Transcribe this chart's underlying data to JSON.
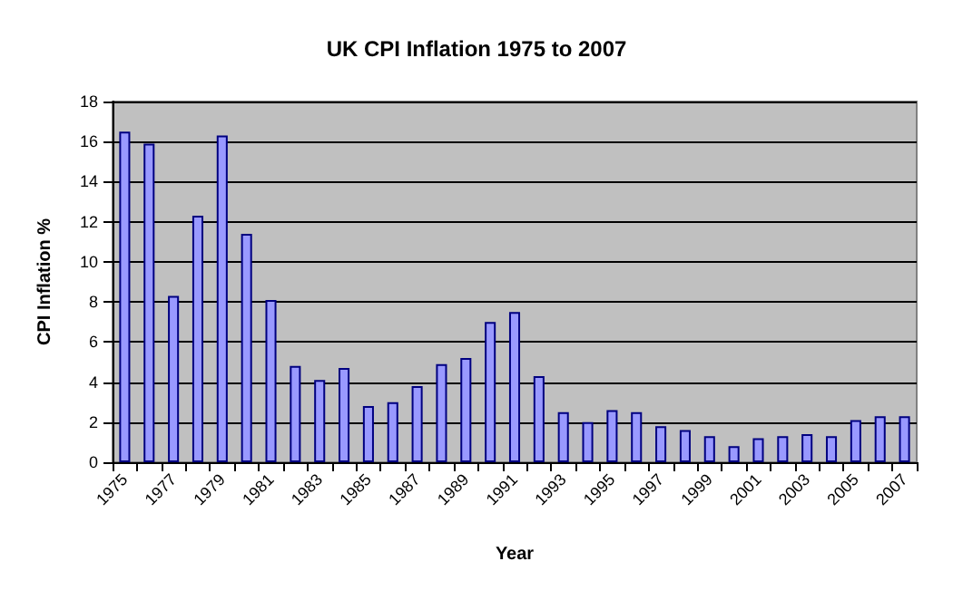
{
  "chart_data": {
    "type": "bar",
    "title": "UK CPI Inflation 1975 to 2007",
    "xlabel": "Year",
    "ylabel": "CPI Inflation %",
    "categories": [
      "1975",
      null,
      "1977",
      null,
      "1979",
      null,
      "1981",
      null,
      "1983",
      null,
      "1985",
      null,
      "1987",
      null,
      "1989",
      null,
      "1991",
      null,
      "1993",
      null,
      "1995",
      null,
      "1997",
      null,
      "1999",
      null,
      "2001",
      null,
      "2003",
      null,
      "2005",
      null,
      "2007"
    ],
    "values": [
      16.5,
      15.9,
      8.3,
      12.3,
      16.3,
      11.4,
      8.1,
      4.8,
      4.1,
      4.7,
      2.8,
      3.0,
      3.8,
      4.9,
      5.2,
      7.0,
      7.5,
      4.3,
      2.5,
      2.0,
      2.6,
      2.5,
      1.8,
      1.6,
      1.3,
      0.8,
      1.2,
      1.3,
      1.4,
      1.3,
      2.1,
      2.3,
      2.3
    ],
    "color": "#9999ff",
    "ylim": [
      0,
      18
    ],
    "yticks": [
      0,
      2,
      4,
      6,
      8,
      10,
      12,
      14,
      16,
      18
    ],
    "grid": "y"
  }
}
